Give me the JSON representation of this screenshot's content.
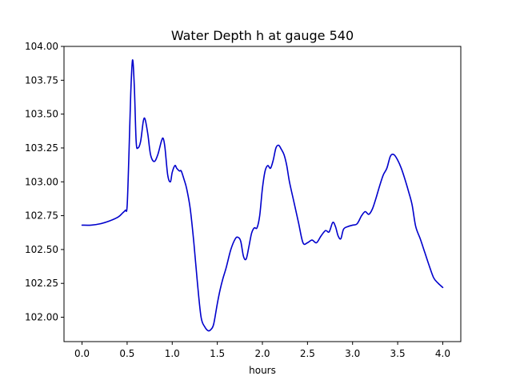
{
  "chart_data": {
    "type": "line",
    "title": "Water Depth h at gauge 540",
    "xlabel": "hours",
    "ylabel": "",
    "xlim": [
      -0.2,
      4.2
    ],
    "ylim": [
      101.82,
      104.0
    ],
    "xticks": [
      0.0,
      0.5,
      1.0,
      1.5,
      2.0,
      2.5,
      3.0,
      3.5,
      4.0
    ],
    "xtick_labels": [
      "0.0",
      "0.5",
      "1.0",
      "1.5",
      "2.0",
      "2.5",
      "3.0",
      "3.5",
      "4.0"
    ],
    "yticks": [
      102.0,
      102.25,
      102.5,
      102.75,
      103.0,
      103.25,
      103.5,
      103.75,
      104.0
    ],
    "ytick_labels": [
      "102.00",
      "102.25",
      "102.50",
      "102.75",
      "103.00",
      "103.25",
      "103.50",
      "103.75",
      "104.00"
    ],
    "grid": false,
    "series": [
      {
        "color": "#0000cc",
        "x": [
          0.0,
          0.1,
          0.2,
          0.3,
          0.4,
          0.45,
          0.48,
          0.5,
          0.52,
          0.54,
          0.56,
          0.58,
          0.6,
          0.62,
          0.65,
          0.68,
          0.7,
          0.73,
          0.76,
          0.8,
          0.84,
          0.88,
          0.9,
          0.92,
          0.95,
          0.98,
          1.0,
          1.03,
          1.05,
          1.08,
          1.1,
          1.13,
          1.16,
          1.2,
          1.24,
          1.28,
          1.32,
          1.36,
          1.4,
          1.43,
          1.46,
          1.5,
          1.53,
          1.56,
          1.6,
          1.65,
          1.7,
          1.73,
          1.76,
          1.79,
          1.82,
          1.85,
          1.88,
          1.91,
          1.94,
          1.97,
          2.0,
          2.03,
          2.06,
          2.09,
          2.12,
          2.15,
          2.18,
          2.21,
          2.24,
          2.27,
          2.3,
          2.35,
          2.4,
          2.45,
          2.5,
          2.55,
          2.6,
          2.65,
          2.7,
          2.74,
          2.78,
          2.81,
          2.84,
          2.87,
          2.9,
          2.95,
          3.0,
          3.05,
          3.1,
          3.14,
          3.18,
          3.22,
          3.26,
          3.3,
          3.34,
          3.38,
          3.42,
          3.46,
          3.5,
          3.54,
          3.58,
          3.62,
          3.66,
          3.7,
          3.75,
          3.8,
          3.85,
          3.9,
          3.95,
          4.0
        ],
        "y": [
          102.68,
          102.68,
          102.69,
          102.71,
          102.74,
          102.77,
          102.79,
          102.82,
          103.2,
          103.65,
          103.9,
          103.7,
          103.3,
          103.25,
          103.3,
          103.45,
          103.46,
          103.35,
          103.2,
          103.15,
          103.2,
          103.3,
          103.32,
          103.25,
          103.05,
          103.0,
          103.07,
          103.12,
          103.1,
          103.08,
          103.08,
          103.02,
          102.95,
          102.8,
          102.55,
          102.25,
          102.0,
          101.93,
          101.9,
          101.91,
          101.95,
          102.1,
          102.2,
          102.28,
          102.37,
          102.5,
          102.58,
          102.59,
          102.56,
          102.45,
          102.43,
          102.52,
          102.62,
          102.66,
          102.66,
          102.75,
          102.95,
          103.08,
          103.12,
          103.1,
          103.16,
          103.25,
          103.27,
          103.24,
          103.2,
          103.12,
          103.0,
          102.85,
          102.7,
          102.55,
          102.55,
          102.57,
          102.55,
          102.6,
          102.64,
          102.63,
          102.7,
          102.67,
          102.6,
          102.58,
          102.65,
          102.67,
          102.68,
          102.69,
          102.75,
          102.78,
          102.76,
          102.8,
          102.88,
          102.97,
          103.05,
          103.1,
          103.19,
          103.2,
          103.16,
          103.1,
          103.02,
          102.93,
          102.83,
          102.67,
          102.58,
          102.48,
          102.38,
          102.29,
          102.25,
          102.22
        ]
      }
    ]
  }
}
